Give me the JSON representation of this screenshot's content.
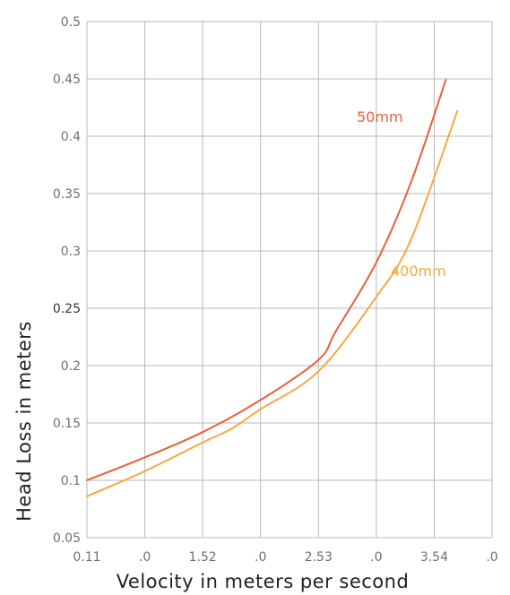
{
  "chart_data": {
    "type": "line",
    "xlabel": "Velocity in meters per second",
    "ylabel": "Head Loss in meters",
    "xlim": [
      0,
      7
    ],
    "ylim": [
      0.05,
      0.5
    ],
    "x_tick_labels": [
      "0.11",
      ".0",
      "1.52",
      ".0",
      "2.53",
      ".0",
      "3.54",
      ".0"
    ],
    "y_tick_labels": [
      "0.05",
      "0.1",
      "0.15",
      "0.2",
      "0.25",
      "0.3",
      "0.35",
      "0.4",
      "0.45",
      "0.5"
    ],
    "grid": true,
    "series": [
      {
        "name": "50mm",
        "color": "#e8603c",
        "x": [
          0,
          1,
          2,
          3,
          4,
          4.3,
          5,
          5.6,
          6.2
        ],
        "y": [
          0.1,
          0.12,
          0.142,
          0.17,
          0.205,
          0.23,
          0.29,
          0.36,
          0.449
        ]
      },
      {
        "name": "400mm",
        "color": "#f5a941",
        "x": [
          0,
          1,
          2,
          2.5,
          3,
          4,
          5,
          5.6,
          6.4
        ],
        "y": [
          0.086,
          0.108,
          0.133,
          0.145,
          0.162,
          0.195,
          0.26,
          0.31,
          0.422
        ]
      }
    ]
  }
}
